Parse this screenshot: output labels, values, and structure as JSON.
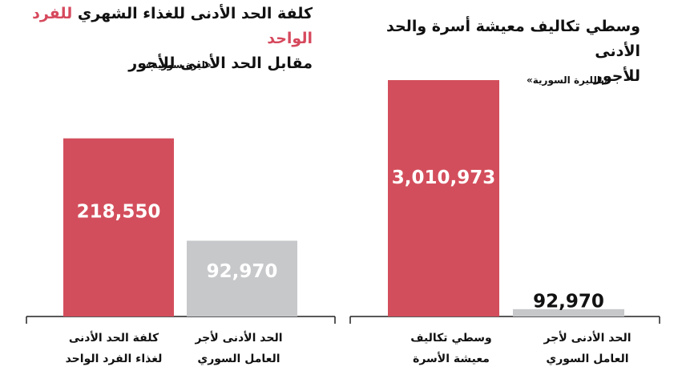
{
  "colors": {
    "highlight": "#d6495d",
    "bar_red": "#d34e5c",
    "bar_gray": "#c7c8ca",
    "axis": "#222222"
  },
  "left_panel": {
    "title_line1_prefix": "كلفة الحد الأدنى للغذاء الشهري",
    "title_line1_highlight": "للفرد الواحد",
    "title_line2": "مقابل الحد الأدنى للأجور",
    "unit": "«ليرة سورية»"
  },
  "right_panel": {
    "title_line1": "وسطي تكاليف معيشة أسرة والحد الأدنى",
    "title_line2": "للأجور",
    "unit": "«بالليرة السورية»"
  },
  "chart_data": [
    {
      "type": "bar",
      "categories": [
        "كلفة الحد الأدنى لغذاء الفرد الواحد",
        "الحد الأدنى لأجر العامل السوري"
      ],
      "category_lines": [
        [
          "كلفة الحد الأدنى",
          "لغذاء الفرد الواحد"
        ],
        [
          "الحد الأدنى لأجر",
          "العامل السوري"
        ]
      ],
      "values": [
        218550,
        92970
      ],
      "value_labels": [
        "218,550",
        "92,970"
      ],
      "bar_colors": [
        "#d34e5c",
        "#c7c8ca"
      ],
      "title": "كلفة الحد الأدنى للغذاء الشهري للفرد الواحد مقابل الحد الأدنى للأجور",
      "ylim": [
        0,
        290000
      ]
    },
    {
      "type": "bar",
      "categories": [
        "وسطي تكاليف معيشة الأسرة",
        "الحد الأدنى لأجر العامل السوري"
      ],
      "category_lines": [
        [
          "وسطي تكاليف",
          "معيشة الأسرة"
        ],
        [
          "الحد الأدنى لأجر",
          "العامل السوري"
        ]
      ],
      "values": [
        3010973,
        92970
      ],
      "value_labels": [
        "3,010,973",
        "92,970"
      ],
      "bar_colors": [
        "#d34e5c",
        "#c7c8ca"
      ],
      "title": "وسطي تكاليف معيشة أسرة والحد الأدنى للأجور",
      "ylim": [
        0,
        3000000
      ]
    }
  ]
}
